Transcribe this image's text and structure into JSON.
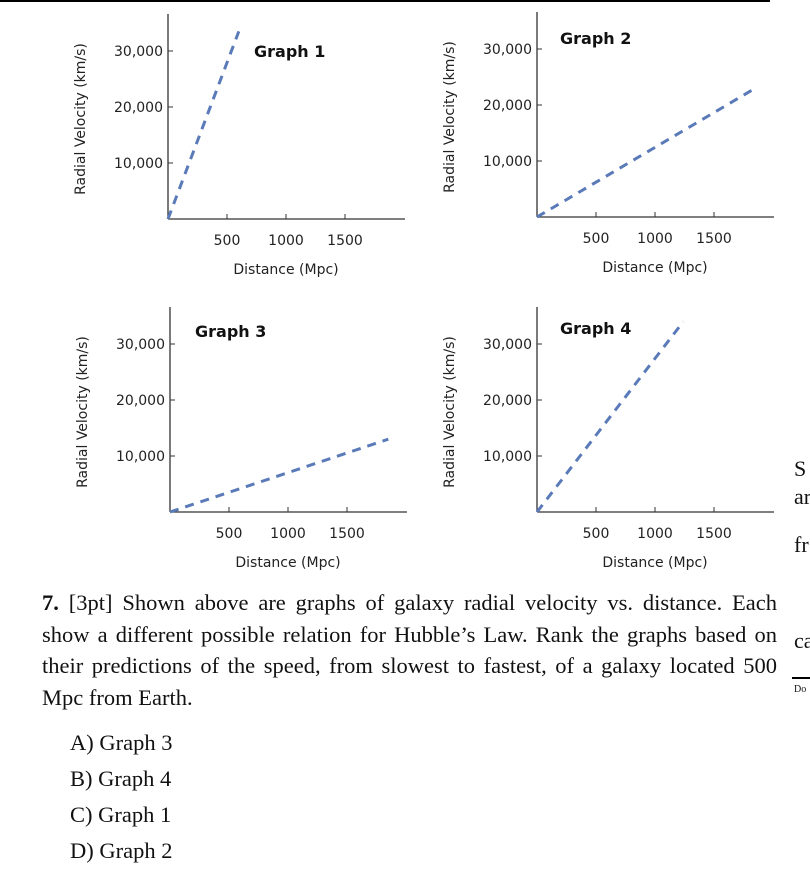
{
  "chart_data": [
    {
      "type": "line",
      "title": "Graph 1",
      "xlabel": "Distance (Mpc)",
      "ylabel": "Radial Velocity (km/s)",
      "xticks": [
        "500",
        "1000",
        "1500"
      ],
      "yticks": [
        "10,000",
        "20,000",
        "30,000"
      ],
      "xlim": [
        0,
        2000
      ],
      "ylim": [
        0,
        36000
      ],
      "style": "dashed",
      "color": "#5a7ab8",
      "x": [
        0,
        600
      ],
      "y": [
        0,
        33500
      ]
    },
    {
      "type": "line",
      "title": "Graph 2",
      "xlabel": "Distance (Mpc)",
      "ylabel": "Radial Velocity (km/s)",
      "xticks": [
        "500",
        "1000",
        "1500"
      ],
      "yticks": [
        "10,000",
        "20,000",
        "30,000"
      ],
      "xlim": [
        0,
        2000
      ],
      "ylim": [
        0,
        36000
      ],
      "style": "dashed",
      "color": "#5a7ab8",
      "x": [
        0,
        1850
      ],
      "y": [
        0,
        23000
      ]
    },
    {
      "type": "line",
      "title": "Graph 3",
      "xlabel": "Distance (Mpc)",
      "ylabel": "Radial Velocity (km/s)",
      "xticks": [
        "500",
        "1000",
        "1500"
      ],
      "yticks": [
        "10,000",
        "20,000",
        "30,000"
      ],
      "xlim": [
        0,
        2000
      ],
      "ylim": [
        0,
        36000
      ],
      "style": "dashed",
      "color": "#5a7ab8",
      "x": [
        0,
        1850
      ],
      "y": [
        0,
        13000
      ]
    },
    {
      "type": "line",
      "title": "Graph 4",
      "xlabel": "Distance (Mpc)",
      "ylabel": "Radial Velocity (km/s)",
      "xticks": [
        "500",
        "1000",
        "1500"
      ],
      "yticks": [
        "10,000",
        "20,000",
        "30,000"
      ],
      "xlim": [
        0,
        2000
      ],
      "ylim": [
        0,
        36000
      ],
      "style": "dashed",
      "color": "#5a7ab8",
      "x": [
        0,
        1240
      ],
      "y": [
        0,
        34000
      ]
    }
  ],
  "question": {
    "number": "7.",
    "points": "[3pt]",
    "text": "Shown above are graphs of galaxy radial velocity vs. distance. Each show a different possible relation for Hubble’s Law. Rank the graphs based on their predictions of the speed, from slowest to fastest, of a galaxy located 500 Mpc from Earth."
  },
  "options": [
    "A) Graph 3",
    "B) Graph 4",
    "C) Graph 1",
    "D) Graph 2"
  ],
  "fragments": [
    "S",
    "ar",
    "fr",
    "ca",
    "Do"
  ]
}
